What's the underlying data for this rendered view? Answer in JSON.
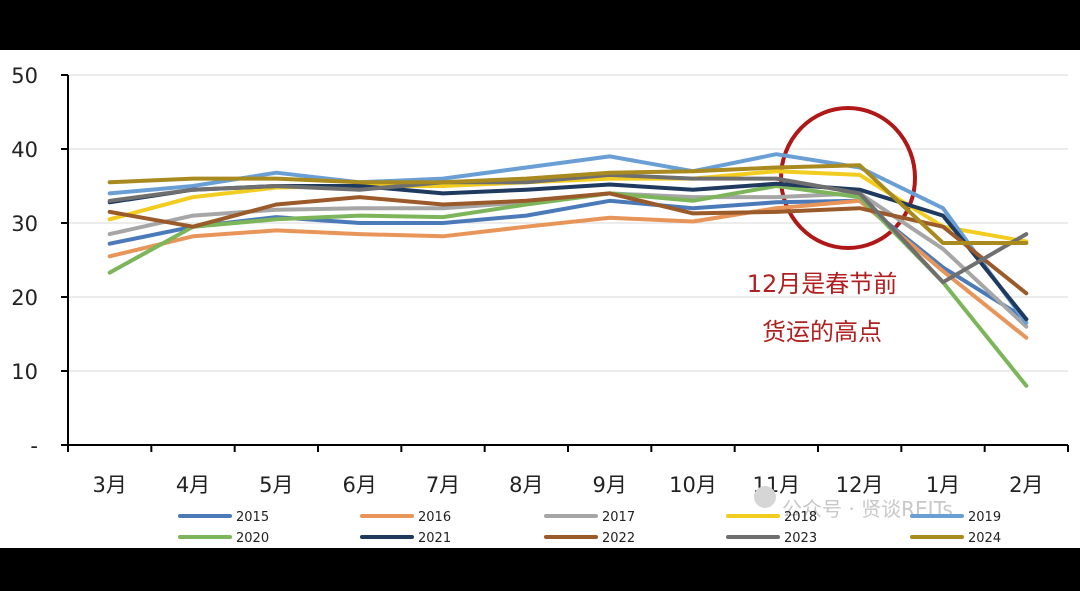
{
  "chart_data": {
    "type": "line",
    "categories": [
      "3月",
      "4月",
      "5月",
      "6月",
      "7月",
      "8月",
      "9月",
      "10月",
      "11月",
      "12月",
      "1月",
      "2月"
    ],
    "y_ticks": [
      "50",
      "40",
      "30",
      "20",
      "10",
      "-"
    ],
    "ylim": [
      0,
      50
    ],
    "grid": true,
    "legend_position": "bottom",
    "annotation": [
      "12月是春节前",
      "货运的高点"
    ],
    "watermark": "公众号 · 贤谈REITs",
    "series": [
      {
        "name": "2015",
        "color": "#4a7ab8",
        "values": [
          27.2,
          29.5,
          30.8,
          30.0,
          30.0,
          31.0,
          33.0,
          32.0,
          32.8,
          33.0,
          24.0,
          17.0
        ]
      },
      {
        "name": "2016",
        "color": "#e8955a",
        "values": [
          25.5,
          28.2,
          29.0,
          28.5,
          28.2,
          29.5,
          30.7,
          30.2,
          32.0,
          33.0,
          23.5,
          14.5
        ]
      },
      {
        "name": "2017",
        "color": "#a6a6a6",
        "values": [
          28.5,
          31.0,
          31.8,
          32.0,
          32.0,
          32.8,
          34.0,
          33.5,
          33.5,
          34.0,
          26.5,
          16.0
        ]
      },
      {
        "name": "2018",
        "color": "#f2cc1e",
        "values": [
          30.5,
          33.5,
          34.8,
          35.0,
          35.0,
          35.5,
          36.0,
          36.0,
          37.0,
          36.5,
          29.5,
          27.5
        ]
      },
      {
        "name": "2019",
        "color": "#6a9fd6",
        "values": [
          34.0,
          35.0,
          36.8,
          35.5,
          36.0,
          37.5,
          39.0,
          37.0,
          39.3,
          37.5,
          32.0,
          16.5
        ]
      },
      {
        "name": "2020",
        "color": "#7cb55a",
        "values": [
          23.3,
          29.5,
          30.5,
          31.0,
          30.8,
          32.5,
          34.0,
          33.0,
          35.0,
          33.5,
          22.0,
          8.0
        ]
      },
      {
        "name": "2021",
        "color": "#1e3a5f",
        "values": [
          32.8,
          34.5,
          35.0,
          35.0,
          34.0,
          34.5,
          35.2,
          34.5,
          35.3,
          34.5,
          31.0,
          17.0
        ]
      },
      {
        "name": "2022",
        "color": "#9a5a2a",
        "values": [
          31.5,
          29.5,
          32.5,
          33.5,
          32.5,
          33.0,
          34.0,
          31.3,
          31.5,
          32.0,
          29.5,
          20.5
        ]
      },
      {
        "name": "2023",
        "color": "#6f6f6f",
        "values": [
          33.0,
          34.5,
          35.0,
          34.5,
          35.5,
          35.5,
          36.5,
          36.0,
          36.0,
          34.0,
          22.0,
          28.5
        ]
      },
      {
        "name": "2024",
        "color": "#a88a1e",
        "values": [
          35.5,
          36.0,
          36.0,
          35.5,
          35.5,
          36.0,
          36.8,
          37.0,
          37.5,
          37.8,
          27.3,
          27.3
        ]
      }
    ]
  }
}
